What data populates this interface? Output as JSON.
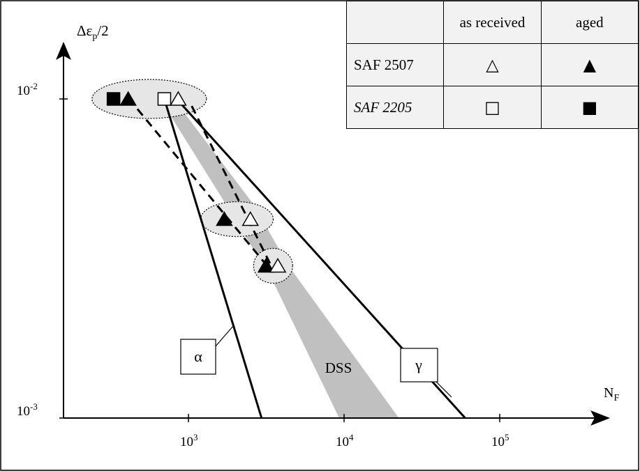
{
  "chart_data": {
    "type": "scatter",
    "xscale": "log",
    "yscale": "log",
    "xlim": [
      130,
      1000000
    ],
    "ylim": [
      0.001,
      0.025
    ],
    "ylabel": "Δεp/2",
    "xlabel": "NF",
    "x_ticks": [
      {
        "value": 1000,
        "label": "10",
        "exp": "3"
      },
      {
        "value": 10000,
        "label": "10",
        "exp": "4"
      },
      {
        "value": 100000,
        "label": "10",
        "exp": "5"
      }
    ],
    "y_ticks": [
      {
        "value": 0.01,
        "label": "10",
        "exp": "-2"
      },
      {
        "value": 0.001,
        "label": "10",
        "exp": "-3"
      }
    ],
    "lines": [
      {
        "label": "α",
        "points": [
          [
            700,
            0.01
          ],
          [
            2950,
            0.001
          ]
        ]
      },
      {
        "label": "γ",
        "points": [
          [
            840,
            0.01
          ],
          [
            60000,
            0.001
          ]
        ]
      }
    ],
    "dashed_lines": [
      {
        "points": [
          [
            470,
            0.0093
          ],
          [
            3200,
            0.003
          ]
        ]
      },
      {
        "points": [
          [
            1050,
            0.0095
          ],
          [
            3400,
            0.003
          ]
        ]
      }
    ],
    "band": {
      "label": "DSS",
      "color": "#c0c0c0",
      "upper": [
        [
          900,
          0.0093
        ],
        [
          2600,
          0.0047
        ],
        [
          4400,
          0.003
        ],
        [
          22500,
          0.001
        ]
      ],
      "lower": [
        [
          9300,
          0.001
        ],
        [
          3600,
          0.0026
        ],
        [
          2000,
          0.0042
        ],
        [
          720,
          0.0093
        ]
      ]
    },
    "groups": [
      {
        "center": [
          560,
          0.01
        ],
        "rx": 82,
        "ry": 28,
        "filled": "#e6e6e6"
      },
      {
        "center": [
          2050,
          0.0042
        ],
        "rx": 52,
        "ry": 25,
        "filled": "#e6e6e6"
      },
      {
        "center": [
          3500,
          0.003
        ],
        "rx": 28,
        "ry": 25,
        "filled": "#e6e6e6"
      }
    ],
    "points": [
      {
        "series": "SAF 2205 aged",
        "marker": "square-filled",
        "x": 330,
        "y": 0.01
      },
      {
        "series": "SAF 2507 aged",
        "marker": "triangle-filled",
        "x": 410,
        "y": 0.01
      },
      {
        "series": "SAF 2205 as received",
        "marker": "square-open",
        "x": 700,
        "y": 0.01
      },
      {
        "series": "SAF 2507 as received",
        "marker": "triangle-open",
        "x": 860,
        "y": 0.01
      },
      {
        "series": "SAF 2507 aged",
        "marker": "triangle-filled",
        "x": 1700,
        "y": 0.0042
      },
      {
        "series": "SAF 2507 as received",
        "marker": "triangle-open",
        "x": 2500,
        "y": 0.0042
      },
      {
        "series": "SAF 2507 aged",
        "marker": "triangle-filled",
        "x": 3150,
        "y": 0.003
      },
      {
        "series": "SAF 2507 as received",
        "marker": "triangle-open",
        "x": 3750,
        "y": 0.003
      }
    ],
    "legend": {
      "placement": "top-right",
      "headers": [
        "",
        "as received",
        "aged"
      ],
      "rows": [
        {
          "name": "SAF 2507",
          "italic": false,
          "as_received": "△",
          "aged": "▲"
        },
        {
          "name": "SAF 2205",
          "italic": true,
          "as_received": "□",
          "aged": "■"
        }
      ]
    },
    "annotations": [
      {
        "text": "α"
      },
      {
        "text": "γ"
      },
      {
        "text": "DSS"
      }
    ]
  }
}
